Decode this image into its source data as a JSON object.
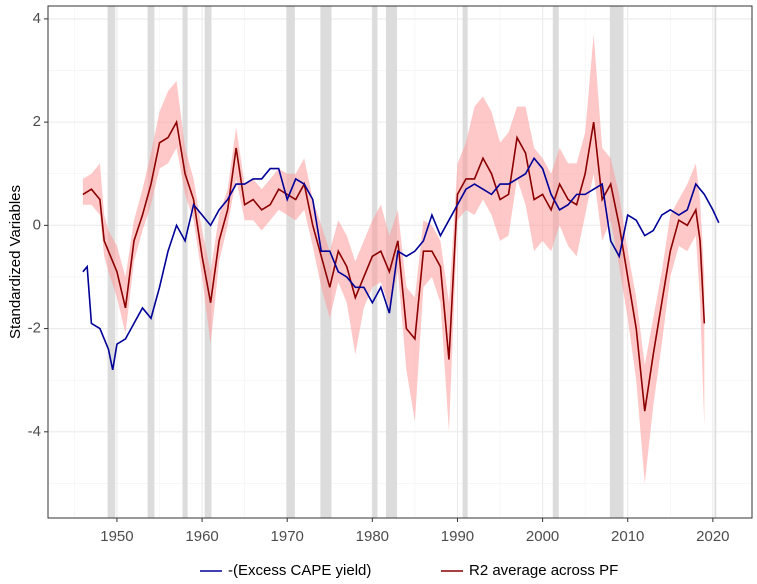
{
  "chart_data": {
    "type": "line",
    "y_label": "Standardized Variables",
    "xlim": [
      1941.9,
      2024.6
    ],
    "ylim": [
      -5.67,
      4.25
    ],
    "xticks": [
      1950,
      1960,
      1970,
      1980,
      1990,
      2000,
      2010,
      2020
    ],
    "yticks": [
      -4,
      -2,
      0,
      2,
      4
    ],
    "minor_xticks": [
      1945,
      1955,
      1965,
      1975,
      1985,
      1995,
      2005,
      2015
    ],
    "minor_yticks": [
      -5,
      -3,
      -1,
      1,
      3
    ],
    "grid": true,
    "legend": "bottom",
    "shaded_periods": [
      [
        1948.9,
        1949.8
      ],
      [
        1953.6,
        1954.4
      ],
      [
        1957.7,
        1958.3
      ],
      [
        1960.3,
        1961.1
      ],
      [
        1969.9,
        1970.9
      ],
      [
        1973.9,
        1975.2
      ],
      [
        1980.0,
        1980.6
      ],
      [
        1981.6,
        1982.9
      ],
      [
        1990.6,
        1991.2
      ],
      [
        2001.2,
        2001.9
      ],
      [
        2007.9,
        2009.5
      ],
      [
        2020.2,
        2020.4
      ]
    ],
    "shade_color": "#dcdcdc",
    "series": [
      {
        "name": "-(Excess CAPE yield)",
        "color": "#000099",
        "x": [
          1946,
          1946.5,
          1947,
          1948,
          1949,
          1949.5,
          1950,
          1951,
          1952,
          1953,
          1954,
          1955,
          1956,
          1957,
          1958,
          1959,
          1960,
          1961,
          1962,
          1963,
          1964,
          1965,
          1966,
          1967,
          1968,
          1969,
          1970,
          1971,
          1972,
          1973,
          1974,
          1975,
          1976,
          1977,
          1978,
          1979,
          1980,
          1981,
          1982,
          1983,
          1984,
          1985,
          1986,
          1987,
          1988,
          1989,
          1990,
          1991,
          1992,
          1993,
          1994,
          1995,
          1996,
          1997,
          1998,
          1999,
          2000,
          2001,
          2002,
          2003,
          2004,
          2005,
          2006,
          2007,
          2008,
          2009,
          2010,
          2011,
          2012,
          2013,
          2014,
          2015,
          2016,
          2017,
          2018,
          2019,
          2020,
          2020.7
        ],
        "values": [
          -0.9,
          -0.8,
          -1.9,
          -2.0,
          -2.4,
          -2.8,
          -2.3,
          -2.2,
          -1.9,
          -1.6,
          -1.8,
          -1.2,
          -0.5,
          0.0,
          -0.3,
          0.4,
          0.2,
          0.0,
          0.3,
          0.5,
          0.8,
          0.8,
          0.9,
          0.9,
          1.1,
          1.1,
          0.5,
          0.9,
          0.8,
          0.5,
          -0.5,
          -0.5,
          -0.9,
          -1.0,
          -1.2,
          -1.2,
          -1.5,
          -1.2,
          -1.7,
          -0.5,
          -0.6,
          -0.5,
          -0.3,
          0.2,
          -0.2,
          0.1,
          0.4,
          0.7,
          0.8,
          0.7,
          0.6,
          0.8,
          0.8,
          0.9,
          1.0,
          1.3,
          1.1,
          0.6,
          0.3,
          0.4,
          0.6,
          0.6,
          0.7,
          0.8,
          -0.3,
          -0.6,
          0.2,
          0.1,
          -0.2,
          -0.1,
          0.2,
          0.3,
          0.2,
          0.3,
          0.8,
          0.6,
          0.3,
          0.05
        ]
      },
      {
        "name": "R2 average across PF",
        "color": "#8b0000",
        "band_color": "#ff9a9a",
        "x": [
          1946,
          1947,
          1948,
          1948.5,
          1949,
          1950,
          1951,
          1952,
          1953,
          1954,
          1955,
          1956,
          1957,
          1958,
          1959,
          1960,
          1961,
          1962,
          1963,
          1964,
          1965,
          1966,
          1967,
          1968,
          1969,
          1970,
          1971,
          1972,
          1973,
          1974,
          1975,
          1976,
          1977,
          1978,
          1979,
          1980,
          1981,
          1982,
          1983,
          1984,
          1985,
          1986,
          1987,
          1988,
          1989,
          1990,
          1991,
          1992,
          1993,
          1994,
          1995,
          1996,
          1997,
          1998,
          1999,
          2000,
          2001,
          2002,
          2003,
          2004,
          2005,
          2006,
          2007,
          2008,
          2009,
          2010,
          2011,
          2012,
          2013,
          2014,
          2015,
          2016,
          2017,
          2018,
          2018.5,
          2019
        ],
        "values": [
          0.6,
          0.7,
          0.5,
          -0.3,
          -0.5,
          -0.9,
          -1.6,
          -0.3,
          0.2,
          0.8,
          1.6,
          1.7,
          2.0,
          1.0,
          0.5,
          -0.6,
          -1.5,
          -0.3,
          0.3,
          1.5,
          0.4,
          0.5,
          0.3,
          0.4,
          0.7,
          0.6,
          0.5,
          0.8,
          0.0,
          -0.6,
          -1.2,
          -0.5,
          -0.8,
          -1.4,
          -1.0,
          -0.6,
          -0.5,
          -0.9,
          -0.3,
          -2.0,
          -2.2,
          -0.5,
          -0.5,
          -0.8,
          -2.6,
          0.6,
          0.9,
          0.9,
          1.3,
          1.0,
          0.5,
          0.6,
          1.7,
          1.4,
          0.5,
          0.6,
          0.3,
          0.8,
          0.5,
          0.4,
          1.0,
          2.0,
          0.5,
          0.8,
          0.0,
          -1.0,
          -2.0,
          -3.6,
          -2.5,
          -1.5,
          -0.5,
          0.1,
          0.0,
          0.3,
          -0.3,
          -1.9
        ],
        "band_upper": [
          0.9,
          1.0,
          1.2,
          0.2,
          -0.1,
          -0.4,
          -1.0,
          0.1,
          0.7,
          1.4,
          2.2,
          2.6,
          2.8,
          1.5,
          0.9,
          -0.1,
          -0.9,
          0.2,
          0.7,
          1.9,
          0.8,
          0.9,
          0.7,
          0.9,
          1.1,
          1.0,
          1.0,
          1.3,
          0.5,
          0.0,
          -0.5,
          0.1,
          -0.2,
          -0.7,
          -0.3,
          0.1,
          0.4,
          -0.2,
          0.3,
          -1.2,
          -1.4,
          0.1,
          0.0,
          -0.3,
          -1.5,
          1.2,
          1.6,
          2.3,
          2.5,
          2.2,
          1.6,
          1.8,
          2.3,
          2.3,
          1.5,
          1.3,
          1.0,
          1.5,
          1.2,
          1.2,
          1.8,
          3.7,
          1.5,
          1.3,
          0.6,
          -0.5,
          -1.4,
          -2.7,
          -1.8,
          -0.9,
          0.2,
          0.5,
          0.8,
          1.2,
          0.5,
          -1.0
        ],
        "band_lower": [
          0.4,
          0.4,
          0.2,
          -0.6,
          -0.9,
          -1.4,
          -2.1,
          -0.7,
          -0.1,
          0.4,
          1.1,
          1.2,
          1.5,
          0.6,
          0.1,
          -1.0,
          -2.3,
          -0.7,
          0.0,
          0.9,
          0.1,
          0.1,
          -0.1,
          0.1,
          0.3,
          0.2,
          0.1,
          0.3,
          -0.4,
          -1.2,
          -1.8,
          -1.1,
          -1.5,
          -2.5,
          -1.6,
          -1.2,
          -1.1,
          -1.6,
          -0.9,
          -2.8,
          -3.8,
          -1.2,
          -1.0,
          -1.5,
          -4.0,
          0.1,
          0.3,
          0.2,
          0.5,
          0.2,
          -0.3,
          -0.2,
          0.9,
          0.4,
          -0.5,
          -0.3,
          -0.5,
          0.0,
          -0.4,
          -0.6,
          0.2,
          1.0,
          -0.3,
          0.1,
          -0.8,
          -1.8,
          -3.0,
          -5.0,
          -3.5,
          -2.3,
          -1.0,
          -0.4,
          -0.5,
          -0.2,
          -1.5,
          -3.9
        ]
      }
    ]
  }
}
